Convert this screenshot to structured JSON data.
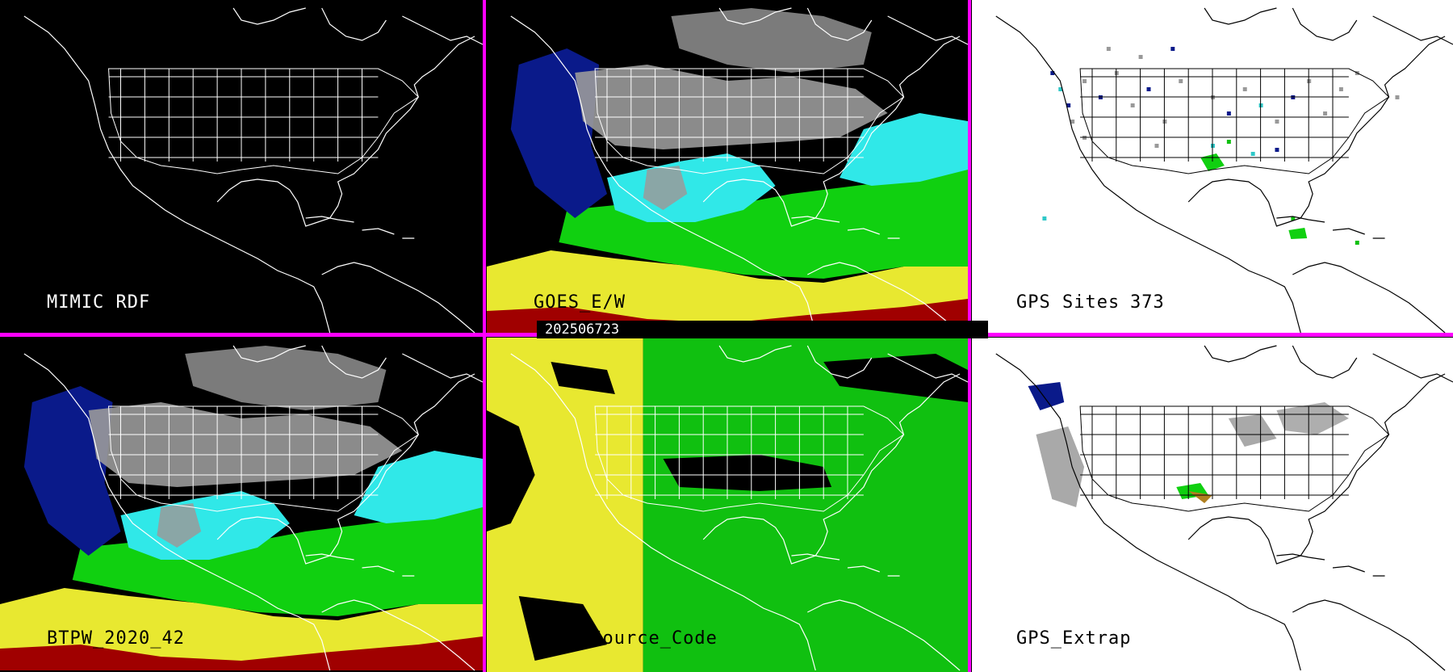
{
  "timestamp": "202506723",
  "colors": {
    "divider": "#ff00ff",
    "outline_dark": "#ffffff",
    "outline_light": "#000000",
    "tpw_red": "#a00000",
    "tpw_yellow": "#e8e830",
    "tpw_green": "#10d010",
    "tpw_cyan": "#30e8e8",
    "tpw_blue": "#0a1a8a",
    "tpw_gray": "#9a9a9a",
    "src_yellow": "#e8e830",
    "src_green": "#10c010"
  },
  "panels": [
    {
      "id": "mimic-rdf",
      "label": "MIMIC RDF",
      "count": "",
      "style": "outline"
    },
    {
      "id": "goes-ew",
      "label": "GOES_E/W",
      "count": "",
      "style": "tpw"
    },
    {
      "id": "gps-sites",
      "label": "GPS Sites",
      "count": "373",
      "style": "sites"
    },
    {
      "id": "btpw",
      "label": "BTPW_2020_42",
      "count": "",
      "style": "tpw"
    },
    {
      "id": "data-source",
      "label": "Data_Source_Code",
      "count": "",
      "style": "source"
    },
    {
      "id": "gps-extrap",
      "label": "GPS_Extrap",
      "count": "",
      "style": "extrap"
    }
  ]
}
